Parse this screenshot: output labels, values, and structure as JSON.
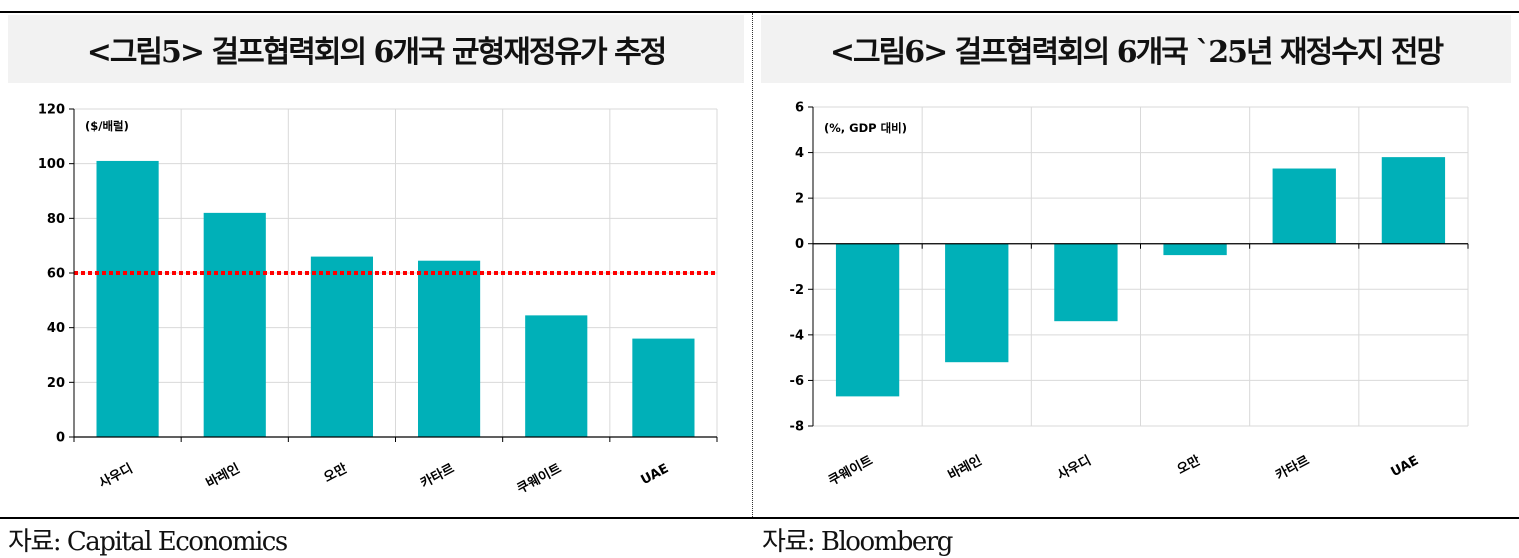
{
  "chart_data": [
    {
      "type": "bar",
      "title": "<그림5> 걸프협력회의 6개국 균형재정유가 추정",
      "unit_label": "($/배럴)",
      "categories": [
        "사우디",
        "바레인",
        "오만",
        "카타르",
        "쿠웨이트",
        "UAE"
      ],
      "values": [
        101,
        82,
        66,
        64.5,
        44.5,
        36
      ],
      "ylim": [
        0,
        120
      ],
      "yticks": [
        0,
        20,
        40,
        60,
        80,
        100,
        120
      ],
      "reference_line": 60,
      "bar_color": "#00b0b8",
      "reference_color": "#ff0000",
      "grid": true,
      "source": "자료: Capital Economics"
    },
    {
      "type": "bar",
      "title": "<그림6> 걸프협력회의 6개국 `25년 재정수지 전망",
      "unit_label": "(%, GDP 대비)",
      "categories": [
        "쿠웨이트",
        "바레인",
        "사우디",
        "오만",
        "카타르",
        "UAE"
      ],
      "values": [
        -6.7,
        -5.2,
        -3.4,
        -0.5,
        3.3,
        3.8
      ],
      "ylim": [
        -8,
        6
      ],
      "yticks": [
        -8,
        -6,
        -4,
        -2,
        0,
        2,
        4,
        6
      ],
      "bar_color": "#00b0b8",
      "grid": true,
      "source": "자료: Bloomberg"
    }
  ]
}
